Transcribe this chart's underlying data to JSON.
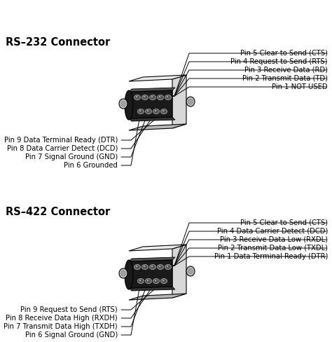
{
  "bg_color": "#ffffff",
  "line_color": "#000000",
  "title1": "RS–232 Connector",
  "title2": "RS–422 Connector",
  "rs232_right_labels": [
    "Pin 5 Clear to Send (CTS)",
    "Pin 4 Request to Send (RTS)",
    "Pin 3 Receive Data (RD)",
    "Pin 2 Transmit Data (TD)",
    "Pin 1 NOT USED"
  ],
  "rs232_left_labels": [
    "Pin 9 Data Terminal Ready (DTR)",
    "Pin 8 Data Carrier Detect (DCD)",
    "Pin 7 Signal Ground (GND)",
    "Pin 6 Grounded"
  ],
  "rs422_right_labels": [
    "Pin 5 Clear to Send (CTS)",
    "Pin 4 Data Carrier Detect (DCD)",
    "Pin 3 Receive Data Low (RXDL)",
    "Pin 2 Transmit Data Low (TXDL)",
    "Pin 1 Data Terminal Ready (DTR)"
  ],
  "rs422_left_labels": [
    "Pin 9 Request to Send (RTS)",
    "Pin 8 Receive Data High (RXDH)",
    "Pin 7 Transmit Data High (TXDH)",
    "Pin 6 Signal Ground (GND)"
  ],
  "font_size": 7.2,
  "title_font_size": 10.5
}
